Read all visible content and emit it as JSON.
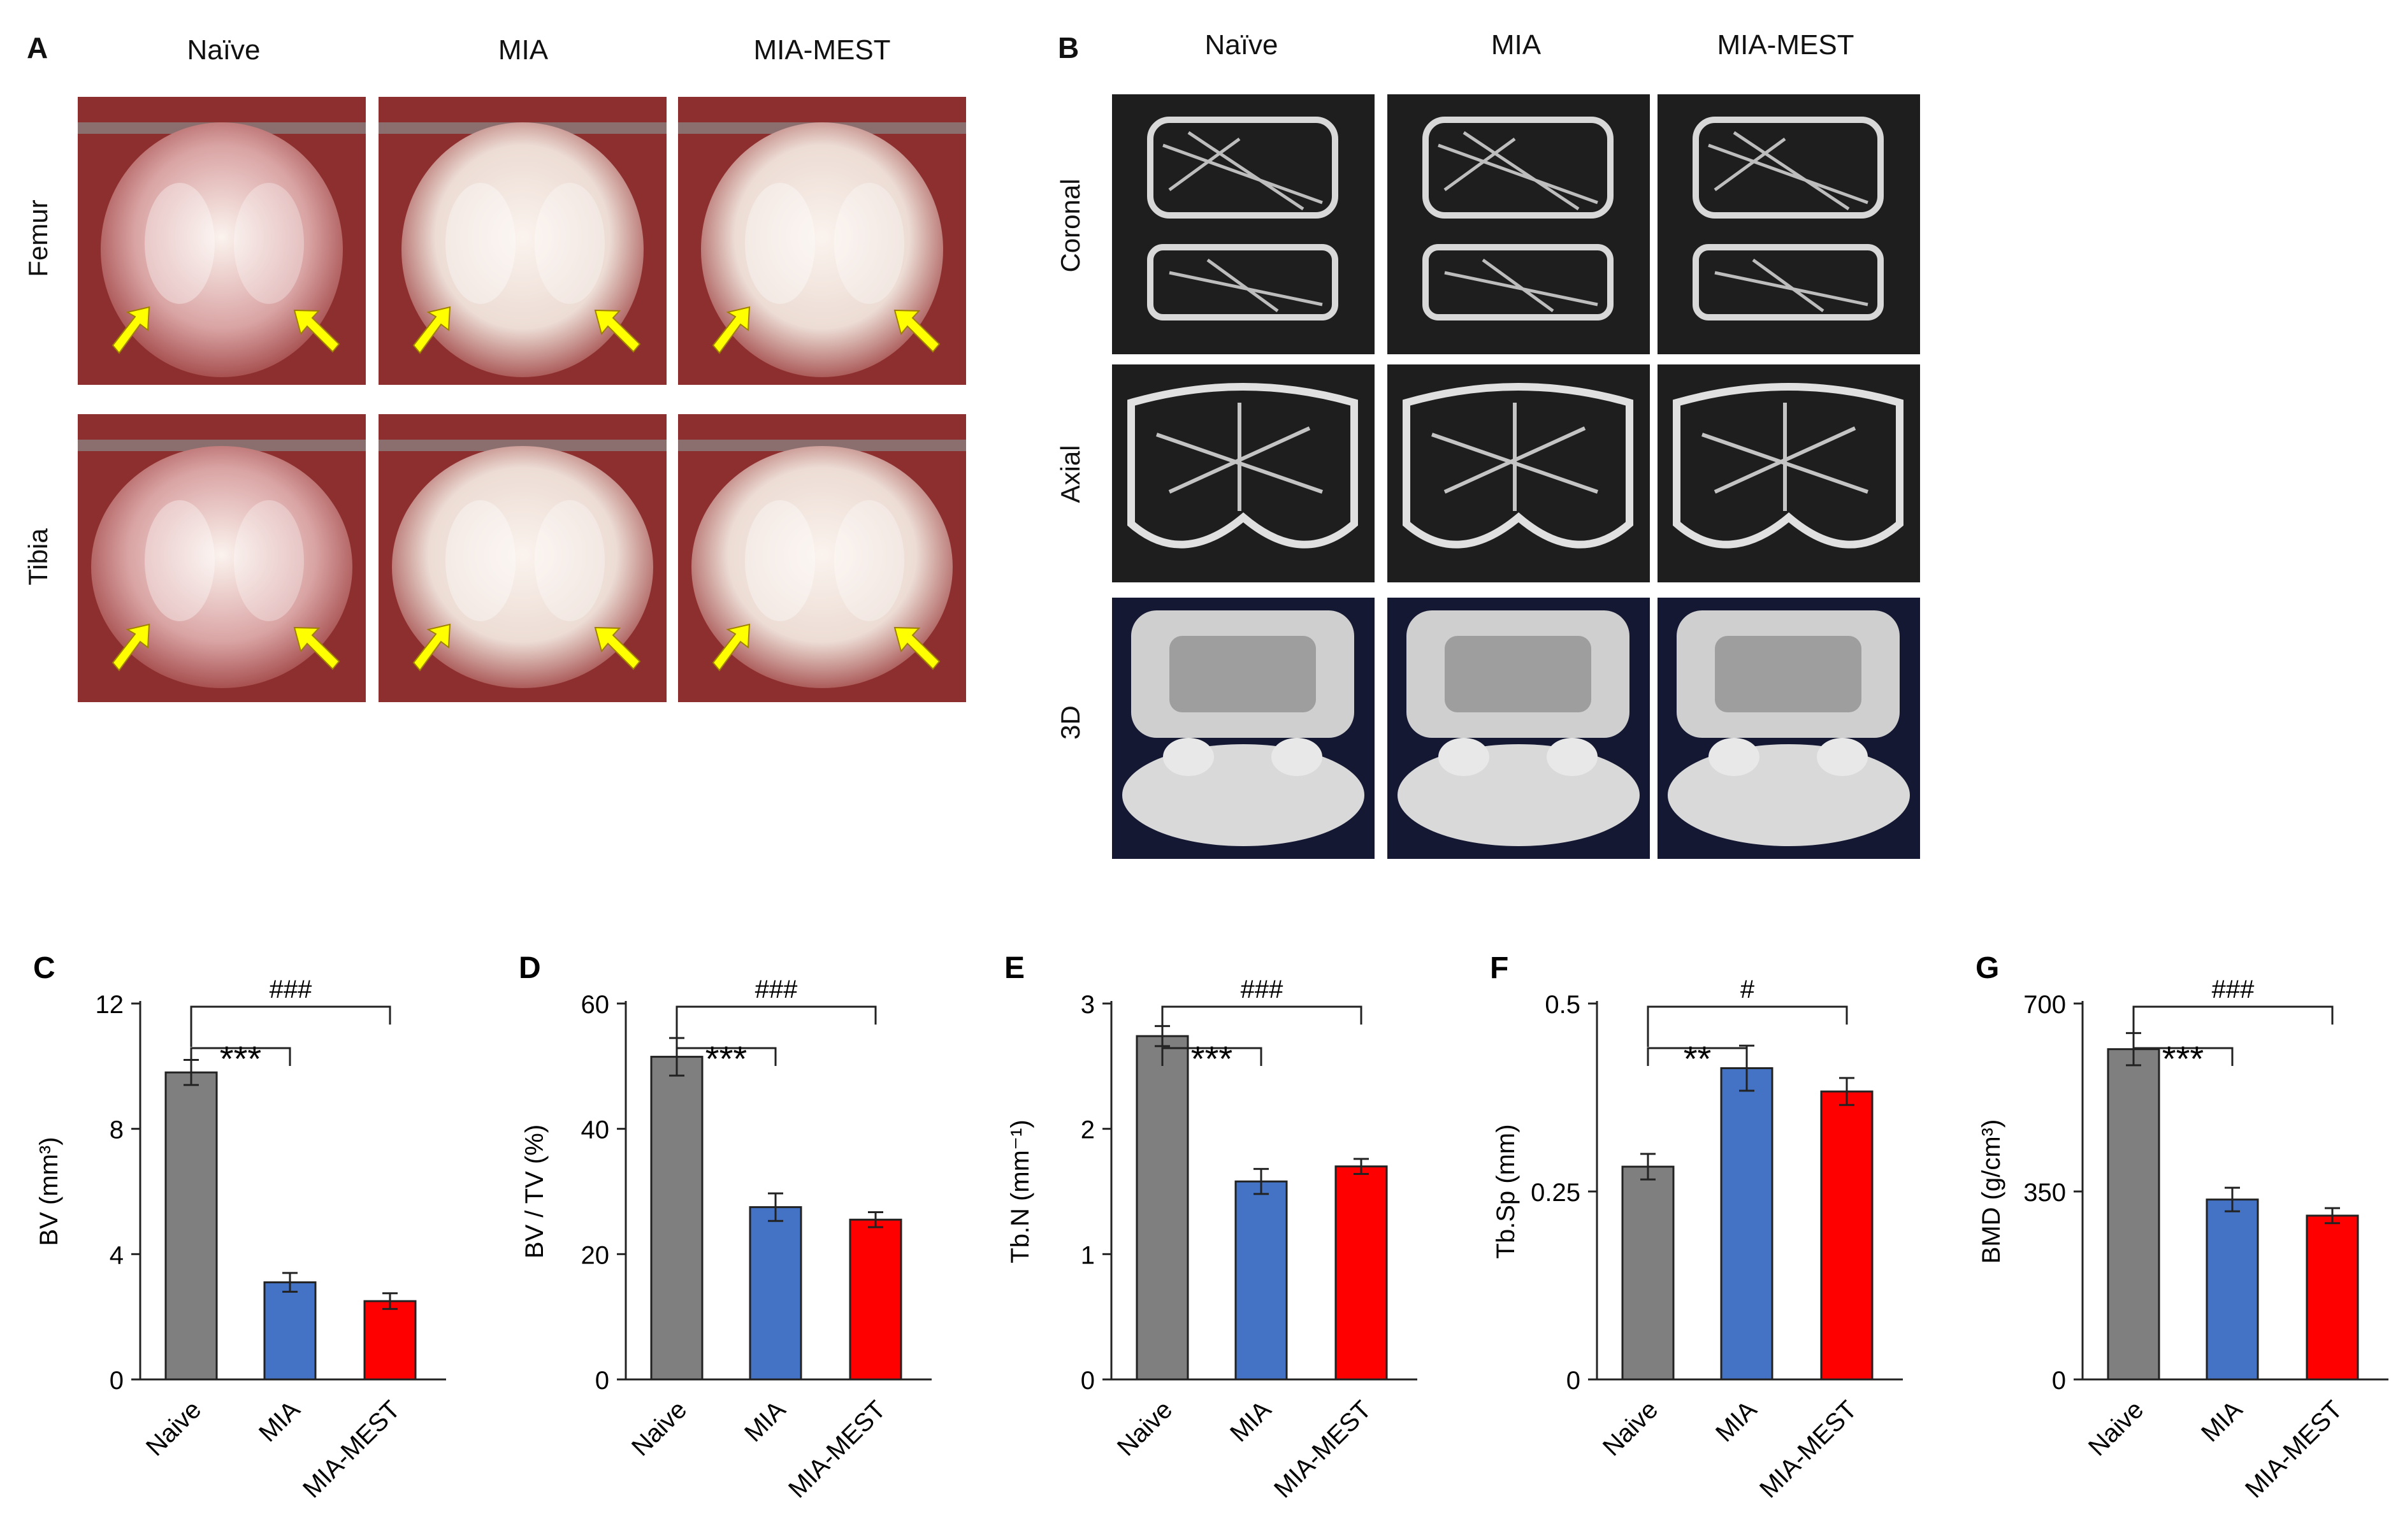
{
  "panel_a": {
    "letter": "A",
    "columns": [
      "Naïve",
      "MIA",
      "MIA-MEST"
    ],
    "rows": [
      "Femur",
      "Tibia"
    ]
  },
  "panel_b": {
    "letter": "B",
    "columns": [
      "Naïve",
      "MIA",
      "MIA-MEST"
    ],
    "rows": [
      "Coronal",
      "Axial",
      "3D"
    ]
  },
  "colors": {
    "naive": "#7f7f7f",
    "mia": "#4472c4",
    "mest": "#ff0000",
    "arrow": "#ffff00"
  },
  "chart_data": [
    {
      "panel": "C",
      "type": "bar",
      "categories": [
        "Naive",
        "MIA",
        "MIA-MEST"
      ],
      "values": [
        9.8,
        3.1,
        2.5
      ],
      "errors": [
        0.4,
        0.3,
        0.25
      ],
      "ylabel": "BV (mm³)",
      "ylim": [
        0,
        12
      ],
      "yticks": [
        "0",
        "4",
        "8",
        "12"
      ],
      "sig_inner": "***",
      "sig_outer": "###"
    },
    {
      "panel": "D",
      "type": "bar",
      "categories": [
        "Naive",
        "MIA",
        "MIA-MEST"
      ],
      "values": [
        51.5,
        27.5,
        25.5
      ],
      "errors": [
        3.0,
        2.2,
        1.2
      ],
      "ylabel": "BV / TV (%)",
      "ylim": [
        0,
        60
      ],
      "yticks": [
        "0",
        "20",
        "40",
        "60"
      ],
      "sig_inner": "***",
      "sig_outer": "###"
    },
    {
      "panel": "E",
      "type": "bar",
      "categories": [
        "Naive",
        "MIA",
        "MIA-MEST"
      ],
      "values": [
        2.74,
        1.58,
        1.7
      ],
      "errors": [
        0.08,
        0.1,
        0.06
      ],
      "ylabel": "Tb.N (mm⁻¹)",
      "ylim": [
        0,
        3
      ],
      "yticks": [
        "0",
        "1",
        "2",
        "3"
      ],
      "sig_inner": "***",
      "sig_outer": "###"
    },
    {
      "panel": "F",
      "type": "bar",
      "categories": [
        "Naive",
        "MIA",
        "MIA-MEST"
      ],
      "values": [
        0.283,
        0.414,
        0.383
      ],
      "errors": [
        0.017,
        0.03,
        0.018
      ],
      "ylabel": "Tb.Sp (mm)",
      "ylim": [
        0,
        0.5
      ],
      "yticks": [
        "0",
        "0.25",
        "0.5"
      ],
      "sig_inner": "**",
      "sig_outer": "#"
    },
    {
      "panel": "G",
      "type": "bar",
      "categories": [
        "Naive",
        "MIA",
        "MIA-MEST"
      ],
      "values": [
        615,
        335,
        305
      ],
      "errors": [
        30,
        22,
        14
      ],
      "ylabel": "BMD (g/cm³)",
      "ylim": [
        0,
        700
      ],
      "yticks": [
        "0",
        "350",
        "700"
      ],
      "sig_inner": "***",
      "sig_outer": "###"
    }
  ]
}
